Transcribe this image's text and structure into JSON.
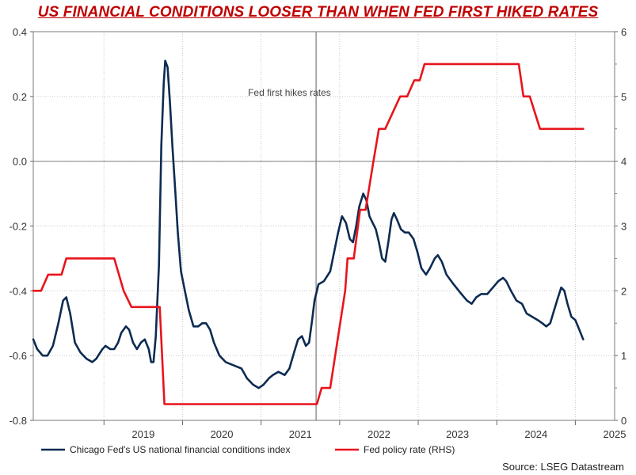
{
  "chart_data": {
    "type": "line",
    "title": "US FINANCIAL CONDITIONS LOOSER THAN WHEN FED FIRST HIKED RATES",
    "source": "Source: LSEG Datastream",
    "annotation": {
      "text": "Fed first hikes rates",
      "x": 2021.7
    },
    "x_range": [
      2018.1,
      2025.5
    ],
    "x_tick_labels": [
      "2019",
      "2020",
      "2021",
      "2022",
      "2023",
      "2024",
      "2025"
    ],
    "y_left": {
      "range": [
        -0.8,
        0.4
      ],
      "ticks": [
        "0.4",
        "0.2",
        "0.0",
        "-0.2",
        "-0.4",
        "-0.6",
        "-0.8"
      ],
      "zero_line": 0
    },
    "y_right": {
      "range": [
        0,
        6
      ],
      "ticks": [
        "6",
        "5",
        "4",
        "3",
        "2",
        "1",
        "0"
      ]
    },
    "grid": "dotted",
    "legend_position": "bottom",
    "series": [
      {
        "name": "Chicago Fed's US national financial conditions index",
        "axis": "left",
        "color": "#0d2b52",
        "points": [
          [
            2018.1,
            -0.55
          ],
          [
            2018.15,
            -0.58
          ],
          [
            2018.22,
            -0.6
          ],
          [
            2018.28,
            -0.6
          ],
          [
            2018.35,
            -0.57
          ],
          [
            2018.42,
            -0.5
          ],
          [
            2018.48,
            -0.43
          ],
          [
            2018.52,
            -0.42
          ],
          [
            2018.57,
            -0.47
          ],
          [
            2018.63,
            -0.56
          ],
          [
            2018.7,
            -0.59
          ],
          [
            2018.78,
            -0.61
          ],
          [
            2018.85,
            -0.62
          ],
          [
            2018.9,
            -0.61
          ],
          [
            2018.98,
            -0.58
          ],
          [
            2019.02,
            -0.57
          ],
          [
            2019.08,
            -0.58
          ],
          [
            2019.13,
            -0.58
          ],
          [
            2019.18,
            -0.56
          ],
          [
            2019.22,
            -0.53
          ],
          [
            2019.28,
            -0.51
          ],
          [
            2019.32,
            -0.52
          ],
          [
            2019.37,
            -0.56
          ],
          [
            2019.42,
            -0.58
          ],
          [
            2019.47,
            -0.56
          ],
          [
            2019.52,
            -0.55
          ],
          [
            2019.57,
            -0.58
          ],
          [
            2019.6,
            -0.62
          ],
          [
            2019.63,
            -0.62
          ],
          [
            2019.66,
            -0.54
          ],
          [
            2019.7,
            -0.32
          ],
          [
            2019.73,
            0.05
          ],
          [
            2019.76,
            0.24
          ],
          [
            2019.78,
            0.31
          ],
          [
            2019.81,
            0.29
          ],
          [
            2019.84,
            0.18
          ],
          [
            2019.87,
            0.05
          ],
          [
            2019.91,
            -0.1
          ],
          [
            2019.94,
            -0.22
          ],
          [
            2019.98,
            -0.34
          ],
          [
            2020.03,
            -0.4
          ],
          [
            2020.08,
            -0.46
          ],
          [
            2020.14,
            -0.51
          ],
          [
            2020.2,
            -0.51
          ],
          [
            2020.25,
            -0.5
          ],
          [
            2020.3,
            -0.5
          ],
          [
            2020.35,
            -0.52
          ],
          [
            2020.4,
            -0.56
          ],
          [
            2020.47,
            -0.6
          ],
          [
            2020.55,
            -0.62
          ],
          [
            2020.65,
            -0.63
          ],
          [
            2020.75,
            -0.64
          ],
          [
            2020.82,
            -0.67
          ],
          [
            2020.9,
            -0.69
          ],
          [
            2020.97,
            -0.7
          ],
          [
            2021.03,
            -0.69
          ],
          [
            2021.1,
            -0.67
          ],
          [
            2021.15,
            -0.66
          ],
          [
            2021.22,
            -0.65
          ],
          [
            2021.3,
            -0.66
          ],
          [
            2021.36,
            -0.64
          ],
          [
            2021.42,
            -0.59
          ],
          [
            2021.47,
            -0.55
          ],
          [
            2021.52,
            -0.54
          ],
          [
            2021.57,
            -0.57
          ],
          [
            2021.61,
            -0.56
          ],
          [
            2021.65,
            -0.49
          ],
          [
            2021.68,
            -0.43
          ],
          [
            2021.73,
            -0.38
          ],
          [
            2021.8,
            -0.37
          ],
          [
            2021.88,
            -0.34
          ],
          [
            2021.93,
            -0.28
          ],
          [
            2021.98,
            -0.22
          ],
          [
            2022.03,
            -0.17
          ],
          [
            2022.08,
            -0.19
          ],
          [
            2022.13,
            -0.24
          ],
          [
            2022.17,
            -0.25
          ],
          [
            2022.21,
            -0.2
          ],
          [
            2022.25,
            -0.14
          ],
          [
            2022.3,
            -0.1
          ],
          [
            2022.34,
            -0.12
          ],
          [
            2022.38,
            -0.17
          ],
          [
            2022.42,
            -0.19
          ],
          [
            2022.46,
            -0.21
          ],
          [
            2022.5,
            -0.25
          ],
          [
            2022.54,
            -0.3
          ],
          [
            2022.58,
            -0.31
          ],
          [
            2022.62,
            -0.25
          ],
          [
            2022.66,
            -0.18
          ],
          [
            2022.69,
            -0.16
          ],
          [
            2022.73,
            -0.18
          ],
          [
            2022.78,
            -0.21
          ],
          [
            2022.83,
            -0.22
          ],
          [
            2022.88,
            -0.22
          ],
          [
            2022.94,
            -0.24
          ],
          [
            2022.99,
            -0.28
          ],
          [
            2023.04,
            -0.33
          ],
          [
            2023.1,
            -0.35
          ],
          [
            2023.15,
            -0.33
          ],
          [
            2023.21,
            -0.3
          ],
          [
            2023.25,
            -0.29
          ],
          [
            2023.3,
            -0.31
          ],
          [
            2023.36,
            -0.35
          ],
          [
            2023.45,
            -0.38
          ],
          [
            2023.55,
            -0.41
          ],
          [
            2023.62,
            -0.43
          ],
          [
            2023.68,
            -0.44
          ],
          [
            2023.74,
            -0.42
          ],
          [
            2023.8,
            -0.41
          ],
          [
            2023.88,
            -0.41
          ],
          [
            2023.95,
            -0.39
          ],
          [
            2024.02,
            -0.37
          ],
          [
            2024.08,
            -0.36
          ],
          [
            2024.12,
            -0.37
          ],
          [
            2024.18,
            -0.4
          ],
          [
            2024.25,
            -0.43
          ],
          [
            2024.32,
            -0.44
          ],
          [
            2024.38,
            -0.47
          ],
          [
            2024.45,
            -0.48
          ],
          [
            2024.52,
            -0.49
          ],
          [
            2024.58,
            -0.5
          ],
          [
            2024.63,
            -0.51
          ],
          [
            2024.68,
            -0.5
          ],
          [
            2024.73,
            -0.46
          ],
          [
            2024.78,
            -0.42
          ],
          [
            2024.82,
            -0.39
          ],
          [
            2024.86,
            -0.4
          ],
          [
            2024.9,
            -0.44
          ],
          [
            2024.95,
            -0.48
          ],
          [
            2025.0,
            -0.49
          ],
          [
            2025.05,
            -0.52
          ],
          [
            2025.1,
            -0.55
          ]
        ]
      },
      {
        "name": "Fed policy rate (RHS)",
        "axis": "right",
        "color": "#e8141c",
        "points": [
          [
            2018.1,
            2.0
          ],
          [
            2018.2,
            2.0
          ],
          [
            2018.29,
            2.25
          ],
          [
            2018.46,
            2.25
          ],
          [
            2018.52,
            2.5
          ],
          [
            2019.13,
            2.5
          ],
          [
            2019.25,
            2.0
          ],
          [
            2019.35,
            1.75
          ],
          [
            2019.71,
            1.75
          ],
          [
            2019.77,
            0.25
          ],
          [
            2021.71,
            0.25
          ],
          [
            2021.77,
            0.5
          ],
          [
            2021.88,
            0.5
          ],
          [
            2022.07,
            2.0
          ],
          [
            2022.1,
            2.5
          ],
          [
            2022.18,
            2.5
          ],
          [
            2022.26,
            3.25
          ],
          [
            2022.33,
            3.25
          ],
          [
            2022.43,
            4.0
          ],
          [
            2022.5,
            4.5
          ],
          [
            2022.58,
            4.5
          ],
          [
            2022.77,
            5.0
          ],
          [
            2022.86,
            5.0
          ],
          [
            2022.95,
            5.25
          ],
          [
            2023.02,
            5.25
          ],
          [
            2023.08,
            5.5
          ],
          [
            2024.28,
            5.5
          ],
          [
            2024.34,
            5.0
          ],
          [
            2024.42,
            5.0
          ],
          [
            2024.55,
            4.5
          ],
          [
            2025.1,
            4.5
          ]
        ]
      }
    ]
  }
}
